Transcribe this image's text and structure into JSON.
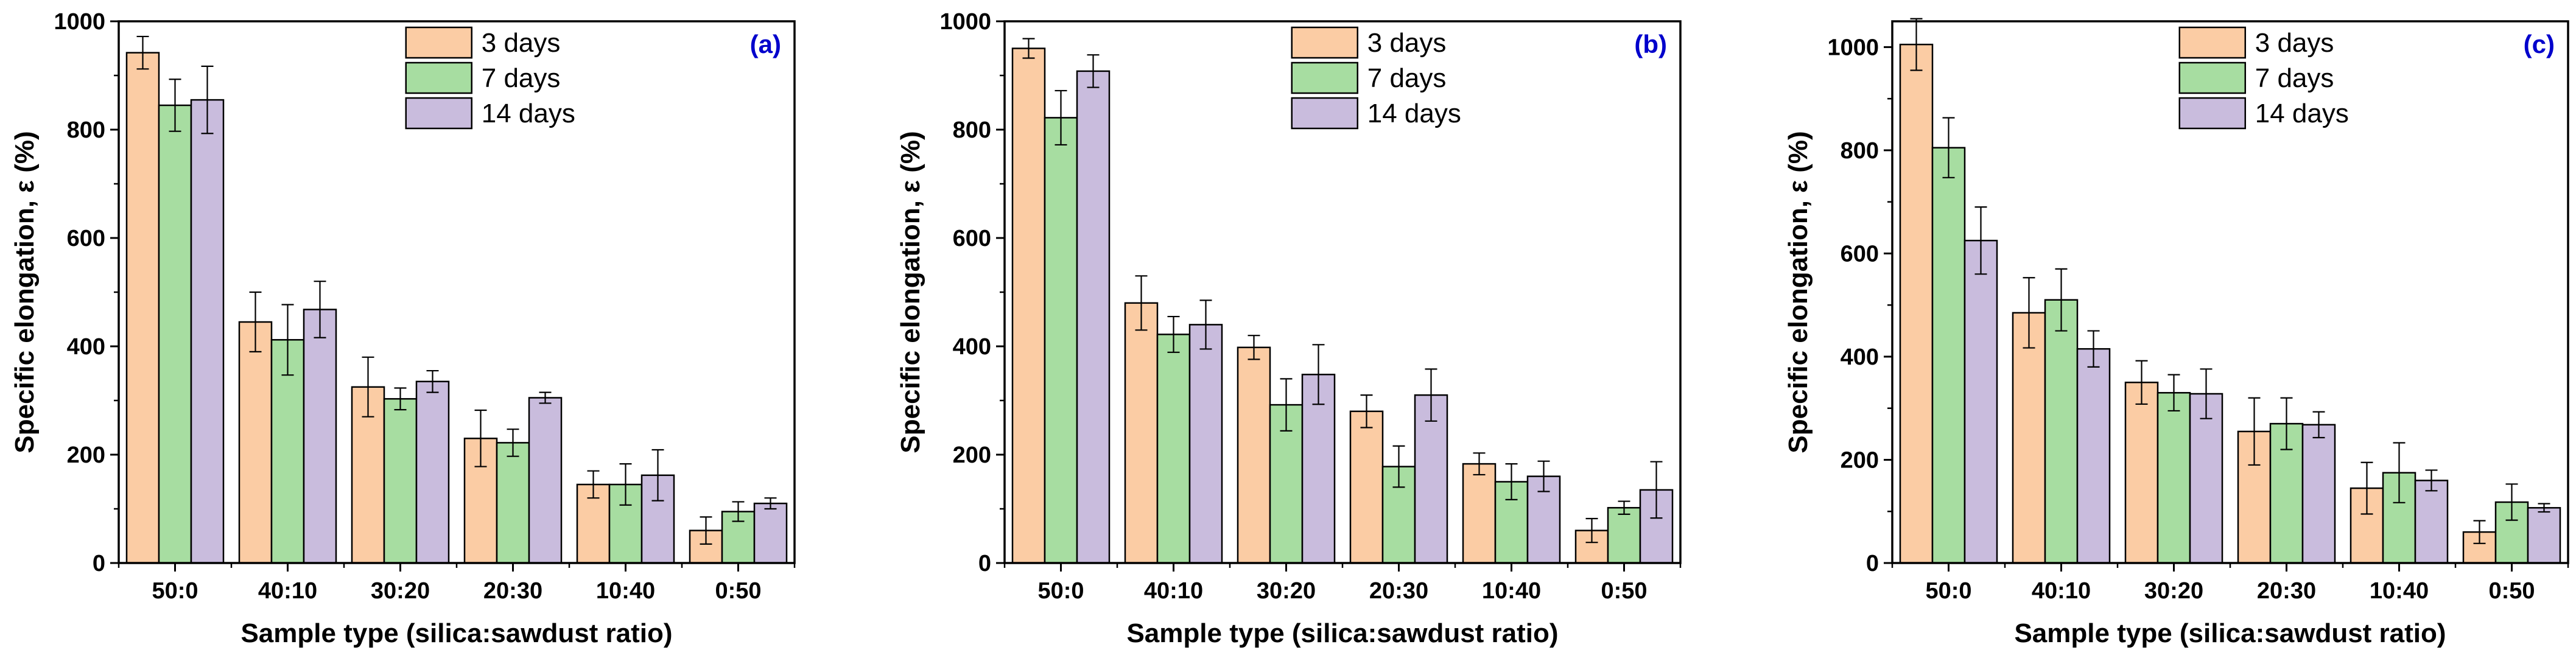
{
  "chart_data": [
    {
      "type": "bar",
      "panel_label": "(a)",
      "xlabel": "Sample type (silica:sawdust ratio)",
      "ylabel": "Specific elongation, ε (%)",
      "categories": [
        "50:0",
        "40:10",
        "30:20",
        "20:30",
        "10:40",
        "0:50"
      ],
      "ylim": [
        0,
        1000
      ],
      "yticks": [
        0,
        200,
        400,
        600,
        800,
        1000
      ],
      "series": [
        {
          "name": "3 days",
          "values": [
            942,
            445,
            325,
            230,
            145,
            60
          ],
          "errors": [
            30,
            55,
            55,
            52,
            25,
            25
          ]
        },
        {
          "name": "7 days",
          "values": [
            845,
            412,
            303,
            222,
            145,
            95
          ],
          "errors": [
            48,
            65,
            20,
            25,
            38,
            18
          ]
        },
        {
          "name": "14 days",
          "values": [
            855,
            468,
            335,
            305,
            162,
            110
          ],
          "errors": [
            62,
            52,
            20,
            10,
            47,
            10
          ]
        }
      ],
      "legend_position": "top-center",
      "colors": {
        "3 days": "#FBCCA4",
        "7 days": "#A7DDA1",
        "14 days": "#C9BCDD",
        "label": "#0000CC"
      }
    },
    {
      "type": "bar",
      "panel_label": "(b)",
      "xlabel": "Sample type (silica:sawdust ratio)",
      "ylabel": "Specific elongation, ε (%)",
      "categories": [
        "50:0",
        "40:10",
        "30:20",
        "20:30",
        "10:40",
        "0:50"
      ],
      "ylim": [
        0,
        1000
      ],
      "yticks": [
        0,
        200,
        400,
        600,
        800,
        1000
      ],
      "series": [
        {
          "name": "3 days",
          "values": [
            950,
            480,
            398,
            280,
            183,
            60
          ],
          "errors": [
            18,
            50,
            22,
            30,
            20,
            22
          ]
        },
        {
          "name": "7 days",
          "values": [
            822,
            422,
            292,
            178,
            150,
            102
          ],
          "errors": [
            50,
            33,
            48,
            38,
            33,
            12
          ]
        },
        {
          "name": "14 days",
          "values": [
            908,
            440,
            348,
            310,
            160,
            135
          ],
          "errors": [
            30,
            45,
            55,
            48,
            28,
            52
          ]
        }
      ],
      "legend_position": "top-center",
      "colors": {
        "3 days": "#FBCCA4",
        "7 days": "#A7DDA1",
        "14 days": "#C9BCDD",
        "label": "#0000CC"
      }
    },
    {
      "type": "bar",
      "panel_label": "(c)",
      "xlabel": "Sample type (silica:sawdust ratio)",
      "ylabel": "Specific elongation, ε (%)",
      "categories": [
        "50:0",
        "40:10",
        "30:20",
        "20:30",
        "10:40",
        "0:50"
      ],
      "ylim": [
        0,
        1050
      ],
      "yticks": [
        0,
        200,
        400,
        600,
        800,
        1000
      ],
      "series": [
        {
          "name": "3 days",
          "values": [
            1005,
            485,
            350,
            255,
            145,
            60
          ],
          "errors": [
            50,
            68,
            42,
            65,
            50,
            22
          ]
        },
        {
          "name": "7 days",
          "values": [
            805,
            510,
            330,
            270,
            175,
            118
          ],
          "errors": [
            58,
            60,
            35,
            50,
            58,
            35
          ]
        },
        {
          "name": "14 days",
          "values": [
            625,
            415,
            328,
            268,
            160,
            107
          ],
          "errors": [
            65,
            35,
            48,
            25,
            20,
            8
          ]
        }
      ],
      "legend_position": "top-center",
      "colors": {
        "3 days": "#FBCCA4",
        "7 days": "#A7DDA1",
        "14 days": "#C9BCDD",
        "label": "#0000CC"
      }
    }
  ]
}
